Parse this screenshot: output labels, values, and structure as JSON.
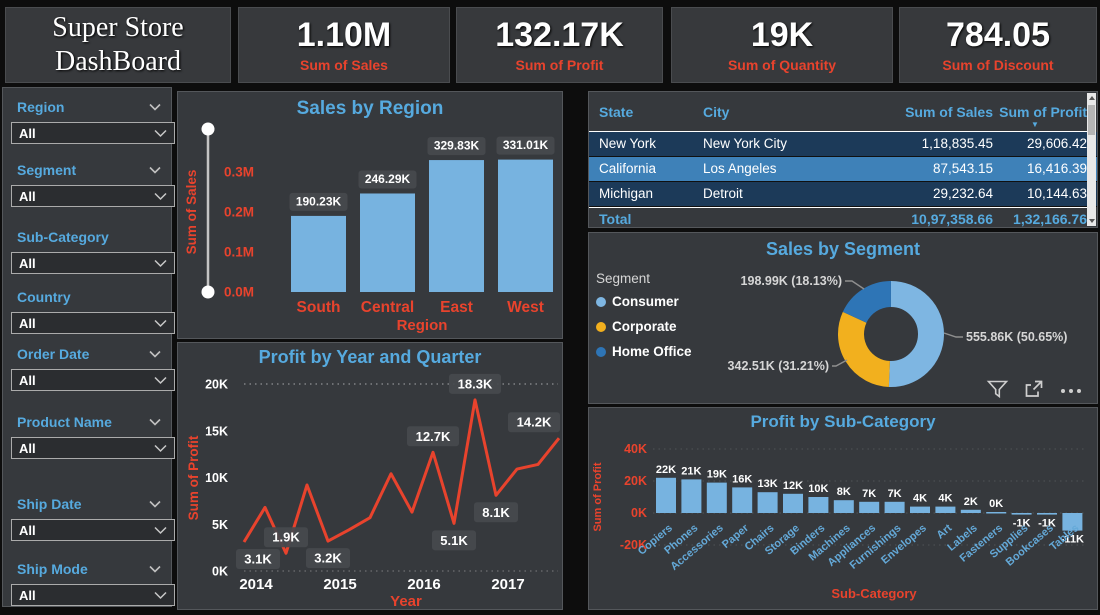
{
  "colors": {
    "accent_blue": "#56aadf",
    "accent_red": "#e8432d",
    "bar_blue": "#77b3e0",
    "donut_consumer": "#7eb6e2",
    "donut_corporate": "#f2b01e",
    "donut_home_office": "#2e75b6",
    "table_row_dark": "#1c3a59",
    "table_row_light": "#3e81b8",
    "badge_bg": "#46494d"
  },
  "title_card": {
    "line1": "Super Store",
    "line2": "DashBoard"
  },
  "kpis": [
    {
      "value": "1.10M",
      "label": "Sum of Sales"
    },
    {
      "value": "132.17K",
      "label": "Sum of Profit"
    },
    {
      "value": "19K",
      "label": "Sum of Quantity"
    },
    {
      "value": "784.05",
      "label": "Sum of Discount"
    }
  ],
  "sidebar": {
    "filters": [
      {
        "label": "Region",
        "value": "All",
        "header_chevron": true
      },
      {
        "label": "Segment",
        "value": "All",
        "header_chevron": true
      },
      {
        "label": "Sub-Category",
        "value": "All",
        "header_chevron": false
      },
      {
        "label": "Country",
        "value": "All",
        "header_chevron": false
      },
      {
        "label": "Order Date",
        "value": "All",
        "header_chevron": true
      },
      {
        "label": "Product Name",
        "value": "All",
        "header_chevron": true
      },
      {
        "label": "Ship Date",
        "value": "All",
        "header_chevron": true
      },
      {
        "label": "Ship Mode",
        "value": "All",
        "header_chevron": true
      }
    ]
  },
  "table": {
    "columns": [
      "State",
      "City",
      "Sum of Sales",
      "Sum of Profit"
    ],
    "sorted_column": "Sum of Profit",
    "rows": [
      {
        "state": "New York",
        "city": "New York City",
        "sales": "1,18,835.45",
        "profit": "29,606.42"
      },
      {
        "state": "California",
        "city": "Los Angeles",
        "sales": "87,543.15",
        "profit": "16,416.39"
      },
      {
        "state": "Michigan",
        "city": "Detroit",
        "sales": "29,232.64",
        "profit": "10,144.63"
      }
    ],
    "total": {
      "label": "Total",
      "sales": "10,97,358.66",
      "profit": "1,32,166.76"
    }
  },
  "visual_toolbar": [
    "filter-icon",
    "focus-mode-icon",
    "more-options-icon"
  ],
  "chart_data": [
    {
      "id": "sales-by-region",
      "type": "bar",
      "title": "Sales by Region",
      "xlabel": "Region",
      "ylabel": "Sum of Sales",
      "categories": [
        "South",
        "Central",
        "East",
        "West"
      ],
      "values": [
        190230,
        246290,
        329830,
        331010
      ],
      "data_labels": [
        "190.23K",
        "246.29K",
        "329.83K",
        "331.01K"
      ],
      "yticks": [
        "0.0M",
        "0.1M",
        "0.2M",
        "0.3M"
      ],
      "ylim": [
        0,
        400000
      ]
    },
    {
      "id": "profit-by-year-and-quarter",
      "type": "line",
      "title": "Profit by Year and Quarter",
      "xlabel": "Year",
      "ylabel": "Sum of Profit",
      "x_years": [
        "2014",
        "2015",
        "2016",
        "2017"
      ],
      "quarters_per_year": 4,
      "values_k": [
        3.1,
        6.8,
        1.9,
        9.2,
        3.2,
        4.4,
        5.7,
        10.4,
        6.3,
        12.7,
        5.1,
        18.3,
        8.1,
        10.9,
        11.4,
        14.2
      ],
      "point_labels": [
        {
          "index": 0,
          "text": "3.1K",
          "pos": "below"
        },
        {
          "index": 2,
          "text": "1.9K",
          "pos": "above"
        },
        {
          "index": 4,
          "text": "3.2K",
          "pos": "below"
        },
        {
          "index": 9,
          "text": "12.7K",
          "pos": "above"
        },
        {
          "index": 10,
          "text": "5.1K",
          "pos": "below"
        },
        {
          "index": 11,
          "text": "18.3K",
          "pos": "above"
        },
        {
          "index": 12,
          "text": "8.1K",
          "pos": "below"
        },
        {
          "index": 15,
          "text": "14.2K",
          "pos": "above"
        }
      ],
      "yticks": [
        "0K",
        "5K",
        "10K",
        "15K",
        "20K"
      ],
      "ylim_k": [
        0,
        20
      ]
    },
    {
      "id": "sales-by-segment",
      "type": "donut",
      "title": "Sales by Segment",
      "legend_title": "Segment",
      "slices": [
        {
          "name": "Consumer",
          "label": "555.86K (50.65%)",
          "pct": 50.65,
          "color_key": "donut_consumer"
        },
        {
          "name": "Corporate",
          "label": "342.51K (31.21%)",
          "pct": 31.21,
          "color_key": "donut_corporate"
        },
        {
          "name": "Home Office",
          "label": "198.99K (18.13%)",
          "pct": 18.13,
          "color_key": "donut_home_office"
        }
      ]
    },
    {
      "id": "profit-by-sub-category",
      "type": "bar",
      "title": "Profit by Sub-Category",
      "xlabel": "Sub-Category",
      "ylabel": "Sum of Profit",
      "categories": [
        "Copiers",
        "Phones",
        "Accessories",
        "Paper",
        "Chairs",
        "Storage",
        "Binders",
        "Machines",
        "Appliances",
        "Furnishings",
        "Envelopes",
        "Art",
        "Labels",
        "Fasteners",
        "Supplies",
        "Bookcases",
        "Tables"
      ],
      "values_k": [
        22,
        21,
        19,
        16,
        13,
        12,
        10,
        8,
        7,
        7,
        4,
        4,
        2,
        0,
        -1,
        -1,
        -11
      ],
      "data_labels": [
        "22K",
        "21K",
        "19K",
        "16K",
        "13K",
        "12K",
        "10K",
        "8K",
        "7K",
        "7K",
        "4K",
        "4K",
        "2K",
        "0K",
        "-1K",
        "-1K",
        "-11K"
      ],
      "yticks": [
        "40K",
        "20K",
        "0K",
        "-20K"
      ],
      "ylim_k": [
        -20,
        40
      ]
    }
  ]
}
